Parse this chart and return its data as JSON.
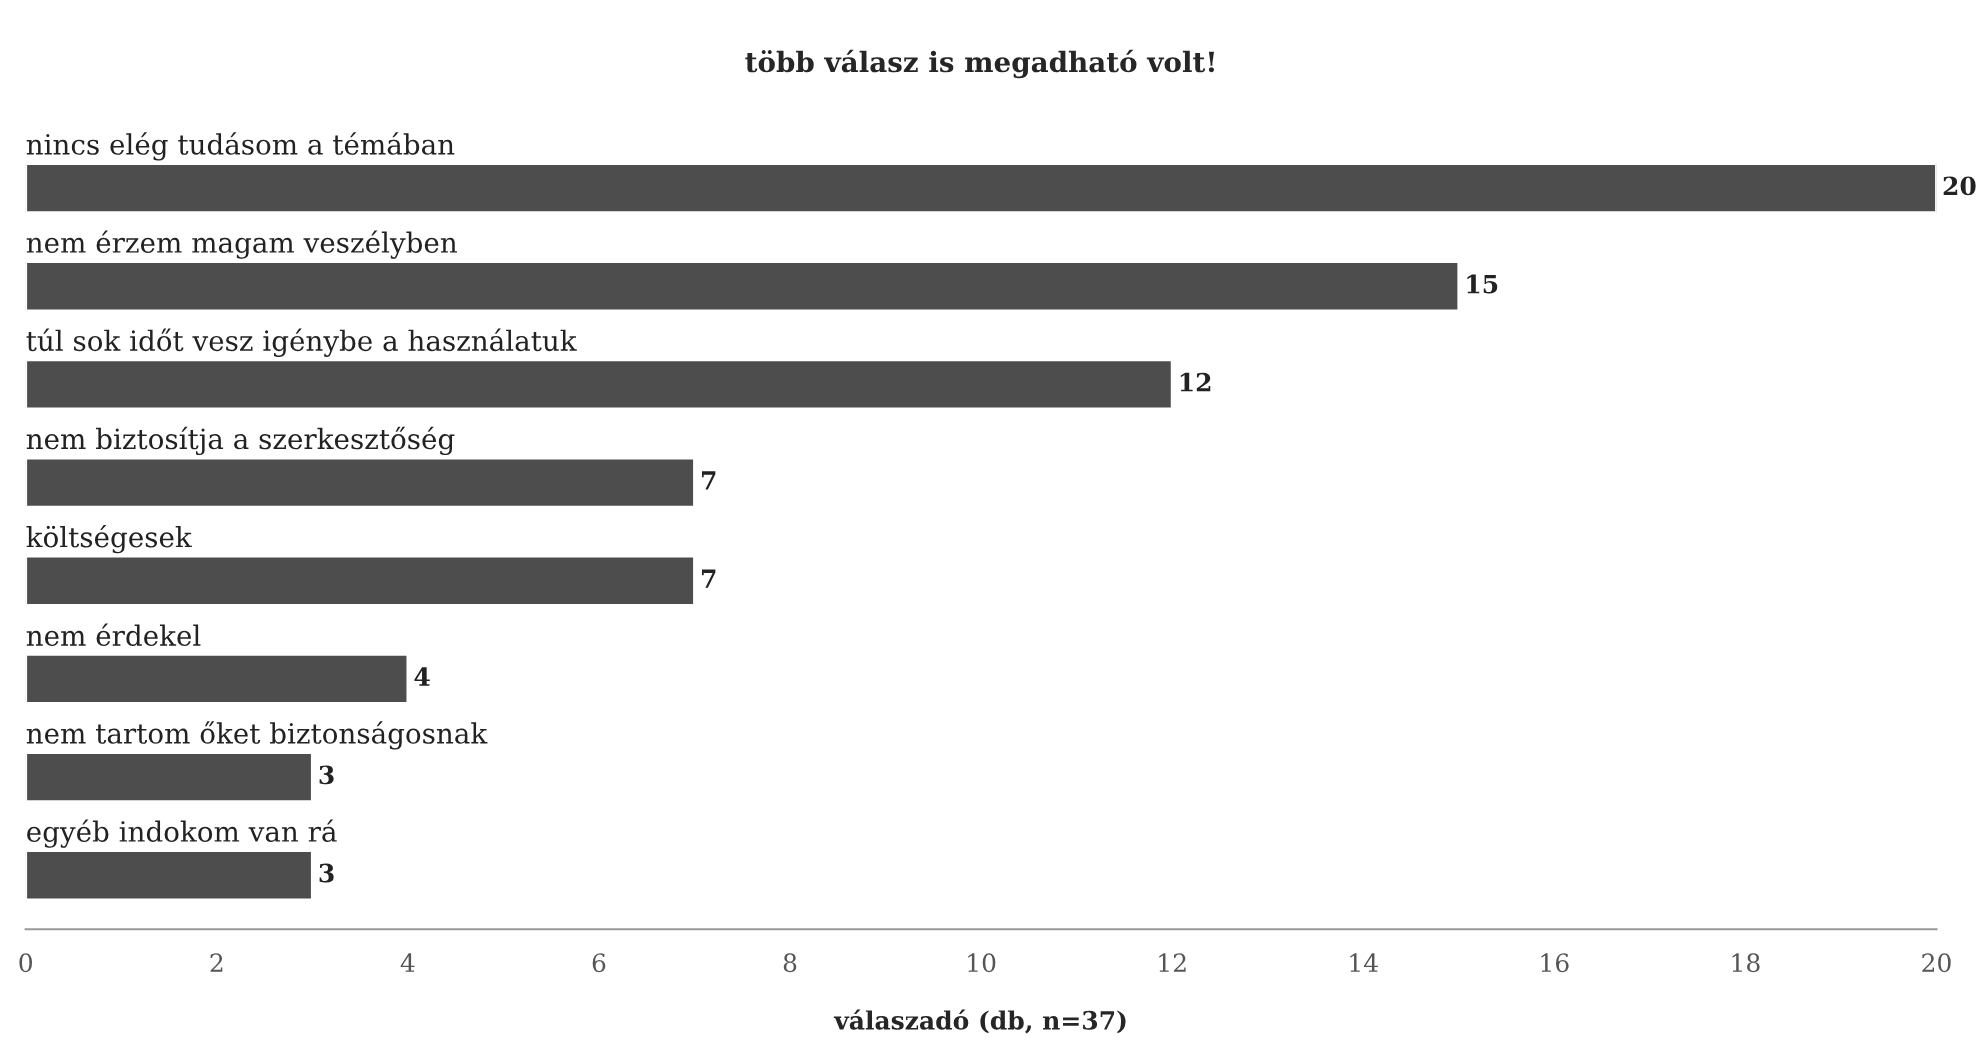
{
  "chart_data": {
    "type": "bar",
    "orientation": "horizontal",
    "title": "több válasz is megadható volt!",
    "xlabel": "válaszadó (db, n=37)",
    "categories": [
      "nincs elég tudásom a témában",
      "nem érzem magam veszélyben",
      "túl sok időt vesz igénybe a használatuk",
      "nem biztosítja a szerkesztőség",
      "költségesek",
      "nem érdekel",
      "nem tartom őket biztonságosnak",
      "egyéb indokom van rá"
    ],
    "values": [
      20,
      15,
      12,
      7,
      7,
      4,
      3,
      3
    ],
    "color": "#4d4d4d",
    "xlim": [
      0,
      20
    ],
    "xticks": [
      0,
      2,
      4,
      6,
      8,
      10,
      12,
      14,
      16,
      18,
      20
    ],
    "data_labels": true,
    "grid": false,
    "legend": false
  }
}
